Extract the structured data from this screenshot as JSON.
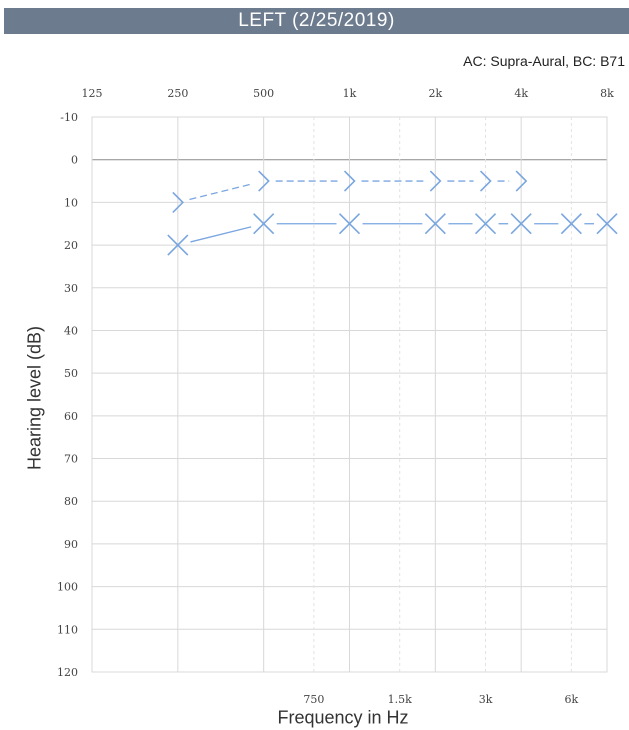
{
  "header": {
    "title": "LEFT  (2/25/2019)",
    "transducer": "AC: Supra-Aural, BC: B71"
  },
  "chart_data": {
    "type": "line",
    "title": "LEFT  (2/25/2019)",
    "xlabel": "Frequency in Hz",
    "ylabel": "Hearing level (dB)",
    "x_scale": "log",
    "y_inverted": true,
    "ylim": [
      -10,
      120
    ],
    "xlim": [
      125,
      8000
    ],
    "octave_ticks": [
      {
        "hz": 125,
        "label": "125"
      },
      {
        "hz": 250,
        "label": "250"
      },
      {
        "hz": 500,
        "label": "500"
      },
      {
        "hz": 1000,
        "label": "1k"
      },
      {
        "hz": 2000,
        "label": "2k"
      },
      {
        "hz": 4000,
        "label": "4k"
      },
      {
        "hz": 8000,
        "label": "8k"
      }
    ],
    "interoctave_ticks": [
      {
        "hz": 750,
        "label": "750"
      },
      {
        "hz": 1500,
        "label": "1.5k"
      },
      {
        "hz": 3000,
        "label": "3k"
      },
      {
        "hz": 6000,
        "label": "6k"
      }
    ],
    "y_ticks": [
      -10,
      0,
      10,
      20,
      30,
      40,
      50,
      60,
      70,
      80,
      90,
      100,
      110,
      120
    ],
    "grid": true,
    "color": "#7aa6e0",
    "series": [
      {
        "marker": "bracket-right",
        "x": [
          250,
          500,
          1000,
          2000,
          3000,
          4000
        ],
        "y": [
          10,
          5,
          5,
          5,
          5,
          5
        ]
      },
      {
        "marker": "x",
        "x": [
          250,
          500,
          1000,
          2000,
          3000,
          4000,
          6000,
          8000
        ],
        "y": [
          20,
          15,
          15,
          15,
          15,
          15,
          15,
          15
        ]
      }
    ]
  }
}
